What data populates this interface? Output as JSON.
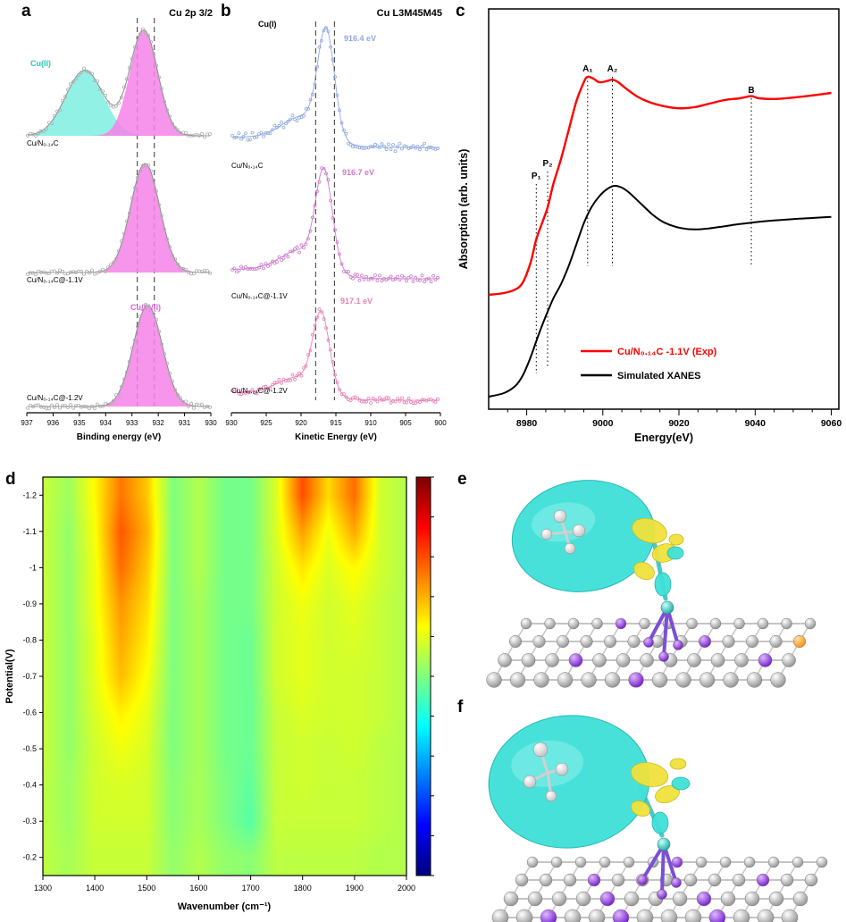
{
  "panels": {
    "a": {
      "letter": "a"
    },
    "b": {
      "letter": "b"
    },
    "c": {
      "letter": "c"
    },
    "d": {
      "letter": "d"
    },
    "e": {
      "letter": "e"
    },
    "f": {
      "letter": "f"
    }
  },
  "chart_data": [
    {
      "id": "a",
      "type": "area",
      "title": "Cu 2p 3/2",
      "xlabel": "Binding energy (eV)",
      "x_ticks": [
        937,
        936,
        935,
        934,
        933,
        932,
        931,
        930
      ],
      "x_range": [
        937,
        930
      ],
      "x_reversed": true,
      "dashed_lines_x": [
        932.8,
        932.15
      ],
      "annotations": [
        {
          "text": "Cu(II)",
          "color": "#2BC8B8"
        },
        {
          "text": "Cu(0)/(I)",
          "color": "#E060E0"
        }
      ],
      "spectra": [
        {
          "name": "Cu/N₀.₁₄C",
          "peaks": [
            {
              "assignment": "Cu(II)",
              "center_eV": 934.8,
              "fwhm_eV": 1.7,
              "rel_amplitude": 0.62,
              "fill": "#7FEFE0"
            },
            {
              "assignment": "Cu(0)/(I)",
              "center_eV": 932.55,
              "fwhm_eV": 1.25,
              "rel_amplitude": 1.0,
              "fill": "#F583E8"
            }
          ]
        },
        {
          "name": "Cu/N₀.₁₄C@-1.1V",
          "peaks": [
            {
              "assignment": "Cu(0)/(I)",
              "center_eV": 932.5,
              "fwhm_eV": 1.3,
              "rel_amplitude": 1.0,
              "fill": "#F583E8"
            }
          ]
        },
        {
          "name": "Cu/N₀.₁₄C@-1.2V",
          "peaks": [
            {
              "assignment": "Cu(0)/(I)",
              "center_eV": 932.4,
              "fwhm_eV": 1.3,
              "rel_amplitude": 1.0,
              "fill": "#F583E8"
            }
          ]
        }
      ]
    },
    {
      "id": "b",
      "type": "scatter",
      "title": "Cu L3M45M45",
      "xlabel": "Kinetic Energy (eV)",
      "x_ticks": [
        930,
        925,
        920,
        915,
        910,
        905,
        900
      ],
      "x_range": [
        930,
        900
      ],
      "x_reversed": true,
      "annotation": "Cu(I)",
      "dashed_lines_x": [
        917.9,
        915.2
      ],
      "spectra": [
        {
          "name": "Cu/N₀.₁₄C",
          "peak_eV": 916.4,
          "peak_label": "916.4 eV",
          "color": "#8FA8E0"
        },
        {
          "name": "Cu/N₀.₁₄C@-1.1V",
          "peak_eV": 916.7,
          "peak_label": "916.7 eV",
          "color": "#CC7ACC"
        },
        {
          "name": "Cu/N₀.₁₄C@-1.2V",
          "peak_eV": 917.1,
          "peak_label": "917.1 eV",
          "color": "#E87FB4"
        }
      ]
    },
    {
      "id": "c",
      "type": "line",
      "xlabel": "Energy(eV)",
      "ylabel": "Absorption (arb. units)",
      "x_ticks": [
        8980,
        9000,
        9020,
        9040,
        9060
      ],
      "x_range": [
        8970,
        9062
      ],
      "features": [
        {
          "label": "P₁",
          "x": 8982.5
        },
        {
          "label": "P₂",
          "x": 8985.5
        },
        {
          "label": "A₁",
          "x": 8996
        },
        {
          "label": "A₂",
          "x": 9002.5
        },
        {
          "label": "B",
          "x": 9039
        }
      ],
      "series": [
        {
          "name": "Cu/N₀.₁₄C -1.1V (Exp)",
          "color": "#FF0000",
          "points": [
            [
              8970,
              0.3
            ],
            [
              8974,
              0.305
            ],
            [
              8977,
              0.315
            ],
            [
              8979,
              0.335
            ],
            [
              8981,
              0.39
            ],
            [
              8982.5,
              0.455
            ],
            [
              8984,
              0.5
            ],
            [
              8985.5,
              0.545
            ],
            [
              8987,
              0.61
            ],
            [
              8989,
              0.68
            ],
            [
              8991,
              0.76
            ],
            [
              8993,
              0.84
            ],
            [
              8995,
              0.895
            ],
            [
              8996,
              0.91
            ],
            [
              8997.5,
              0.905
            ],
            [
              8999,
              0.895
            ],
            [
              9001,
              0.898
            ],
            [
              9002.5,
              0.902
            ],
            [
              9004,
              0.895
            ],
            [
              9006,
              0.878
            ],
            [
              9009,
              0.855
            ],
            [
              9012,
              0.84
            ],
            [
              9016,
              0.828
            ],
            [
              9020,
              0.822
            ],
            [
              9024,
              0.825
            ],
            [
              9028,
              0.835
            ],
            [
              9032,
              0.845
            ],
            [
              9036,
              0.85
            ],
            [
              9039,
              0.856
            ],
            [
              9041,
              0.85
            ],
            [
              9045,
              0.848
            ],
            [
              9050,
              0.852
            ],
            [
              9055,
              0.858
            ],
            [
              9060,
              0.865
            ]
          ]
        },
        {
          "name": "Simulated XANES",
          "color": "#000000",
          "points": [
            [
              8970,
              0.015
            ],
            [
              8974,
              0.025
            ],
            [
              8977,
              0.045
            ],
            [
              8979,
              0.075
            ],
            [
              8981,
              0.125
            ],
            [
              8983,
              0.185
            ],
            [
              8985,
              0.24
            ],
            [
              8987,
              0.29
            ],
            [
              8989,
              0.33
            ],
            [
              8991,
              0.38
            ],
            [
              8993,
              0.44
            ],
            [
              8995,
              0.5
            ],
            [
              8997,
              0.545
            ],
            [
              8999,
              0.575
            ],
            [
              9001,
              0.595
            ],
            [
              9003,
              0.605
            ],
            [
              9005,
              0.6
            ],
            [
              9007,
              0.585
            ],
            [
              9010,
              0.555
            ],
            [
              9013,
              0.525
            ],
            [
              9016,
              0.503
            ],
            [
              9020,
              0.488
            ],
            [
              9024,
              0.483
            ],
            [
              9028,
              0.486
            ],
            [
              9032,
              0.492
            ],
            [
              9036,
              0.498
            ],
            [
              9040,
              0.503
            ],
            [
              9045,
              0.508
            ],
            [
              9050,
              0.512
            ],
            [
              9055,
              0.515
            ],
            [
              9060,
              0.518
            ]
          ]
        }
      ]
    },
    {
      "id": "d",
      "type": "heatmap",
      "xlabel": "Wavenumber (cm⁻¹)",
      "ylabel": "Potential(V)",
      "x_ticks": [
        1300,
        1400,
        1500,
        1600,
        1700,
        1800,
        1900,
        2000
      ],
      "y_tick_labels": [
        "-1.2",
        "-1.1",
        "-1",
        "-0.9",
        "-0.8",
        "-0.7",
        "-0.6",
        "-0.5",
        "-0.4",
        "-0.3",
        "-0.2"
      ],
      "x_values": [
        1300,
        1350,
        1400,
        1450,
        1500,
        1550,
        1600,
        1650,
        1700,
        1750,
        1800,
        1850,
        1900,
        1950,
        2000
      ],
      "y_values": [
        -1.2,
        -1.1,
        -1.0,
        -0.9,
        -0.8,
        -0.7,
        -0.6,
        -0.5,
        -0.4,
        -0.3,
        -0.2
      ],
      "colormap": "jet",
      "grid": [
        [
          0.57,
          0.53,
          0.63,
          0.76,
          0.68,
          0.5,
          0.55,
          0.49,
          0.49,
          0.59,
          0.8,
          0.66,
          0.77,
          0.58,
          0.55
        ],
        [
          0.57,
          0.52,
          0.62,
          0.79,
          0.7,
          0.5,
          0.55,
          0.49,
          0.49,
          0.59,
          0.72,
          0.61,
          0.71,
          0.58,
          0.55
        ],
        [
          0.57,
          0.52,
          0.61,
          0.77,
          0.68,
          0.5,
          0.55,
          0.49,
          0.49,
          0.58,
          0.65,
          0.59,
          0.63,
          0.58,
          0.55
        ],
        [
          0.57,
          0.52,
          0.61,
          0.73,
          0.66,
          0.5,
          0.54,
          0.49,
          0.49,
          0.58,
          0.61,
          0.58,
          0.6,
          0.57,
          0.55
        ],
        [
          0.57,
          0.52,
          0.6,
          0.71,
          0.64,
          0.5,
          0.54,
          0.49,
          0.48,
          0.58,
          0.6,
          0.58,
          0.59,
          0.57,
          0.55
        ],
        [
          0.57,
          0.52,
          0.6,
          0.69,
          0.62,
          0.5,
          0.54,
          0.49,
          0.48,
          0.58,
          0.6,
          0.58,
          0.58,
          0.57,
          0.55
        ],
        [
          0.57,
          0.52,
          0.59,
          0.64,
          0.6,
          0.5,
          0.54,
          0.49,
          0.48,
          0.57,
          0.59,
          0.58,
          0.58,
          0.57,
          0.55
        ],
        [
          0.57,
          0.52,
          0.58,
          0.61,
          0.59,
          0.5,
          0.54,
          0.49,
          0.48,
          0.57,
          0.58,
          0.57,
          0.58,
          0.56,
          0.55
        ],
        [
          0.56,
          0.53,
          0.58,
          0.59,
          0.58,
          0.51,
          0.54,
          0.5,
          0.47,
          0.57,
          0.58,
          0.57,
          0.57,
          0.56,
          0.55
        ],
        [
          0.56,
          0.53,
          0.58,
          0.58,
          0.58,
          0.51,
          0.54,
          0.5,
          0.46,
          0.57,
          0.57,
          0.57,
          0.57,
          0.56,
          0.55
        ],
        [
          0.56,
          0.54,
          0.57,
          0.57,
          0.57,
          0.52,
          0.55,
          0.52,
          0.51,
          0.56,
          0.56,
          0.56,
          0.56,
          0.55,
          0.55
        ]
      ]
    }
  ]
}
